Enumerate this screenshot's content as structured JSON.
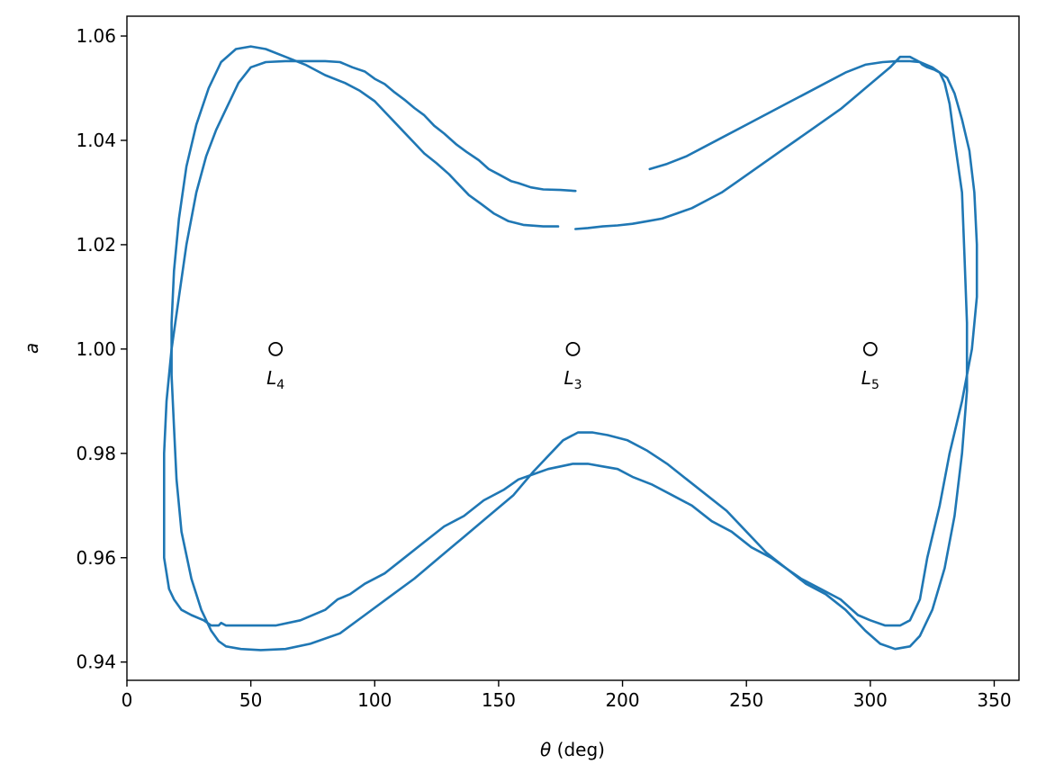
{
  "chart_data": {
    "type": "line",
    "title": "",
    "xlabel": "θ (deg)",
    "ylabel": "a",
    "xlim": [
      0,
      360
    ],
    "ylim": [
      0.9365,
      1.0638
    ],
    "grid": false,
    "xticks": [
      0,
      50,
      100,
      150,
      200,
      250,
      300,
      350
    ],
    "yticks": [
      0.94,
      0.96,
      0.98,
      1.0,
      1.02,
      1.04,
      1.06
    ],
    "ytick_labels": [
      "0.94",
      "0.96",
      "0.98",
      "1.00",
      "1.02",
      "1.04",
      "1.06"
    ],
    "series_color": "#1f77b4",
    "series": [
      {
        "name": "",
        "x": [
          181,
          175,
          168,
          163,
          158,
          155,
          150,
          146,
          142,
          137,
          133,
          128,
          124,
          120,
          116,
          112,
          108,
          104,
          100,
          96,
          91,
          86,
          80,
          72,
          64,
          56,
          50,
          45,
          40,
          36,
          32,
          28,
          24,
          21,
          18,
          16,
          15,
          15,
          15,
          17,
          19,
          22,
          26,
          31,
          34,
          37,
          38,
          40,
          44,
          52,
          60,
          70,
          80,
          85,
          90,
          96,
          104,
          112,
          120,
          128,
          136,
          144,
          152,
          158,
          164,
          170,
          175,
          180,
          186,
          192,
          198,
          204,
          212,
          220,
          228,
          236,
          244,
          252,
          260,
          266,
          272,
          280,
          288,
          295,
          300,
          306,
          312,
          316,
          320,
          323,
          328,
          332,
          337,
          341,
          343,
          343,
          342,
          340,
          337,
          334,
          331,
          328,
          326,
          323,
          321,
          320,
          316,
          311,
          305,
          298,
          290,
          282,
          274,
          266,
          258,
          250,
          242,
          234,
          226,
          218,
          211
        ],
        "y": [
          1.0303,
          1.0305,
          1.0306,
          1.031,
          1.0318,
          1.0322,
          1.0335,
          1.0345,
          1.0362,
          1.0378,
          1.0392,
          1.0413,
          1.0428,
          1.0448,
          1.0462,
          1.0478,
          1.0492,
          1.0508,
          1.0518,
          1.0532,
          1.054,
          1.055,
          1.0552,
          1.0552,
          1.0552,
          1.055,
          1.054,
          1.051,
          1.046,
          1.042,
          1.037,
          1.03,
          1.02,
          1.01,
          1.0,
          0.99,
          0.98,
          0.97,
          0.96,
          0.954,
          0.952,
          0.95,
          0.949,
          0.948,
          0.947,
          0.947,
          0.9475,
          0.947,
          0.947,
          0.947,
          0.947,
          0.948,
          0.95,
          0.952,
          0.953,
          0.955,
          0.957,
          0.96,
          0.963,
          0.966,
          0.968,
          0.971,
          0.973,
          0.975,
          0.976,
          0.977,
          0.9775,
          0.978,
          0.978,
          0.9775,
          0.977,
          0.9755,
          0.974,
          0.972,
          0.97,
          0.967,
          0.965,
          0.962,
          0.96,
          0.958,
          0.956,
          0.954,
          0.952,
          0.949,
          0.948,
          0.947,
          0.947,
          0.948,
          0.952,
          0.96,
          0.97,
          0.98,
          0.99,
          1.0,
          1.01,
          1.02,
          1.03,
          1.038,
          1.044,
          1.049,
          1.052,
          1.053,
          1.0535,
          1.054,
          1.0545,
          1.055,
          1.0552,
          1.0552,
          1.055,
          1.0545,
          1.053,
          1.051,
          1.049,
          1.047,
          1.045,
          1.043,
          1.041,
          1.039,
          1.037,
          1.0355,
          1.0345
        ]
      },
      {
        "name": "",
        "x": [
          174,
          168,
          160,
          154,
          148,
          143,
          138,
          134,
          130,
          125,
          120,
          116,
          112,
          108,
          104,
          100,
          94,
          88,
          80,
          72,
          64,
          56,
          50,
          44,
          38,
          33,
          28,
          24,
          21,
          19,
          18,
          18,
          19,
          20,
          22,
          26,
          30,
          34,
          37,
          40,
          46,
          54,
          64,
          74,
          86,
          96,
          106,
          116,
          126,
          136,
          146,
          156,
          164,
          171,
          176,
          182,
          188,
          194,
          202,
          210,
          218,
          226,
          234,
          242,
          250,
          258,
          266,
          274,
          282,
          290,
          298,
          304,
          310,
          316,
          320,
          325,
          330,
          334,
          337,
          339,
          339,
          338,
          337,
          334,
          332,
          330,
          328,
          325,
          320,
          316,
          312,
          308,
          303,
          298,
          293,
          288,
          282,
          276,
          270,
          264,
          258,
          252,
          246,
          240,
          234,
          228,
          222,
          216,
          210,
          204,
          198,
          192,
          186,
          181
        ],
        "y": [
          1.0235,
          1.0235,
          1.0238,
          1.0245,
          1.026,
          1.0278,
          1.0295,
          1.0315,
          1.0335,
          1.0356,
          1.0375,
          1.0395,
          1.0415,
          1.0435,
          1.0455,
          1.0475,
          1.0495,
          1.051,
          1.0525,
          1.0545,
          1.056,
          1.0575,
          1.058,
          1.0575,
          1.055,
          1.05,
          1.043,
          1.035,
          1.025,
          1.015,
          1.005,
          0.995,
          0.985,
          0.975,
          0.965,
          0.956,
          0.95,
          0.946,
          0.944,
          0.943,
          0.9425,
          0.9423,
          0.9425,
          0.9435,
          0.9455,
          0.949,
          0.9525,
          0.956,
          0.96,
          0.964,
          0.968,
          0.972,
          0.9765,
          0.98,
          0.9825,
          0.984,
          0.984,
          0.9835,
          0.9825,
          0.9805,
          0.978,
          0.975,
          0.972,
          0.969,
          0.965,
          0.961,
          0.958,
          0.955,
          0.953,
          0.95,
          0.946,
          0.9435,
          0.9425,
          0.943,
          0.945,
          0.95,
          0.958,
          0.968,
          0.98,
          0.992,
          1.005,
          1.018,
          1.03,
          1.04,
          1.047,
          1.051,
          1.053,
          1.054,
          1.055,
          1.056,
          1.056,
          1.054,
          1.052,
          1.05,
          1.048,
          1.046,
          1.044,
          1.042,
          1.04,
          1.038,
          1.036,
          1.034,
          1.032,
          1.03,
          1.0285,
          1.027,
          1.026,
          1.025,
          1.0245,
          1.024,
          1.0237,
          1.0235,
          1.0232,
          1.023
        ]
      }
    ],
    "points": [
      {
        "label": "L4",
        "base": "L",
        "sub": "4",
        "x": 60,
        "y": 1.0
      },
      {
        "label": "L3",
        "base": "L",
        "sub": "3",
        "x": 180,
        "y": 1.0
      },
      {
        "label": "L5",
        "base": "L",
        "sub": "5",
        "x": 300,
        "y": 1.0
      }
    ]
  }
}
